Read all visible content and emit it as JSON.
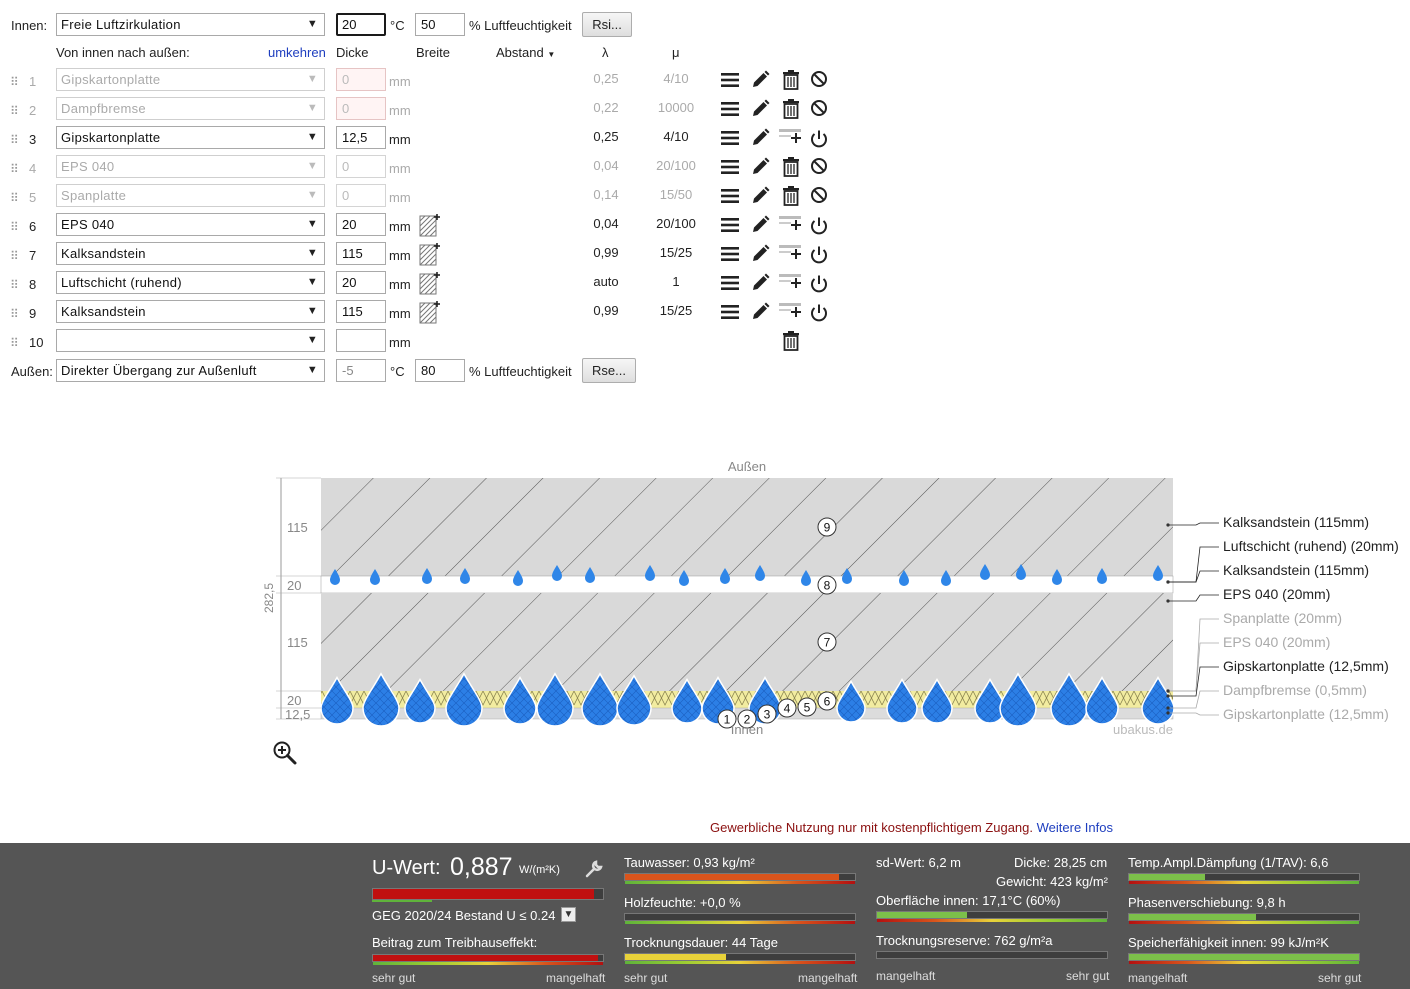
{
  "inside": {
    "label": "Innen:",
    "climate": "Freie Luftzirkulation",
    "temp": "20",
    "temp_unit": "°C",
    "humidity": "50",
    "humidity_unit": "% Luftfeuchtigkeit",
    "resistance_btn": "Rsi..."
  },
  "headers": {
    "direction": "Von innen nach außen:",
    "reverse": "umkehren",
    "thickness": "Dicke",
    "width": "Breite",
    "spacing": "Abstand",
    "lambda": "λ",
    "mu": "μ"
  },
  "layers": [
    {
      "n": "1",
      "material": "Gipskartonplatte",
      "thickness": "0",
      "unit": "mm",
      "lambda": "0,25",
      "mu": "4/10",
      "active": false,
      "thk_error": true
    },
    {
      "n": "2",
      "material": "Dampfbremse",
      "thickness": "0",
      "unit": "mm",
      "lambda": "0,22",
      "mu": "10000",
      "active": false,
      "thk_error": true
    },
    {
      "n": "3",
      "material": "Gipskartonplatte",
      "thickness": "12,5",
      "unit": "mm",
      "lambda": "0,25",
      "mu": "4/10",
      "active": true,
      "hatch": false
    },
    {
      "n": "4",
      "material": "EPS 040",
      "thickness": "0",
      "unit": "mm",
      "lambda": "0,04",
      "mu": "20/100",
      "active": false
    },
    {
      "n": "5",
      "material": "Spanplatte",
      "thickness": "0",
      "unit": "mm",
      "lambda": "0,14",
      "mu": "15/50",
      "active": false
    },
    {
      "n": "6",
      "material": "EPS 040",
      "thickness": "20",
      "unit": "mm",
      "lambda": "0,04",
      "mu": "20/100",
      "active": true,
      "hatch": true
    },
    {
      "n": "7",
      "material": "Kalksandstein",
      "thickness": "115",
      "unit": "mm",
      "lambda": "0,99",
      "mu": "15/25",
      "active": true,
      "hatch": true
    },
    {
      "n": "8",
      "material": "Luftschicht (ruhend)",
      "thickness": "20",
      "unit": "mm",
      "lambda": "auto",
      "mu": "1",
      "active": true,
      "hatch": true
    },
    {
      "n": "9",
      "material": "Kalksandstein",
      "thickness": "115",
      "unit": "mm",
      "lambda": "0,99",
      "mu": "15/25",
      "active": true,
      "hatch": true
    },
    {
      "n": "10",
      "material": "",
      "thickness": "",
      "unit": "mm",
      "lambda": "",
      "mu": "",
      "active": true,
      "empty": true
    }
  ],
  "outside": {
    "label": "Außen:",
    "climate": "Direkter Übergang zur Außenluft",
    "temp": "-5",
    "temp_unit": "°C",
    "humidity": "80",
    "humidity_unit": "% Luftfeuchtigkeit",
    "resistance_btn": "Rse..."
  },
  "diagram": {
    "top_label": "Außen",
    "bottom_label": "Innen",
    "watermark": "ubakus.de",
    "total": "282,5",
    "dims": [
      "115",
      "20",
      "115",
      "20",
      "12,5"
    ],
    "layer_labels": [
      {
        "text": "Kalksandstein (115mm)",
        "active": true
      },
      {
        "text": "Luftschicht (ruhend) (20mm)",
        "active": true
      },
      {
        "text": "Kalksandstein (115mm)",
        "active": true
      },
      {
        "text": "EPS 040 (20mm)",
        "active": true
      },
      {
        "text": "Spanplatte (20mm)",
        "active": false
      },
      {
        "text": "EPS 040 (20mm)",
        "active": false
      },
      {
        "text": "Gipskartonplatte (12,5mm)",
        "active": true
      },
      {
        "text": "Dampfbremse (0,5mm)",
        "active": false
      },
      {
        "text": "Gipskartonplatte (12,5mm)",
        "active": false
      }
    ],
    "markers": [
      "1",
      "2",
      "3",
      "4",
      "5",
      "6",
      "7",
      "8",
      "9"
    ]
  },
  "notice": {
    "text": "Gewerbliche Nutzung nur mit kostenpflichtigem Zugang.",
    "link": "Weitere Infos"
  },
  "results": {
    "u_label": "U-Wert:",
    "u_value": "0,887",
    "u_unit": "W/(m²K)",
    "u_fill": 0.96,
    "geg": "GEG 2020/24 Bestand U ≤ 0.24",
    "greenhouse": "Beitrag zum Treibhauseffekt:",
    "greenhouse_fill": 0.98,
    "scale_good": "sehr gut",
    "scale_bad": "mangelhaft",
    "tauwasser": "Tauwasser: 0,93 kg/m²",
    "tauwasser_fill": 0.93,
    "holzfeuchte": "Holzfeuchte: +0,0 %",
    "holzfeuchte_fill": 0.0,
    "trocknung": "Trocknungsdauer: 44 Tage",
    "trocknung_fill": 0.44,
    "sd": "sd-Wert: 6,2 m",
    "dicke": "Dicke: 28,25 cm",
    "gewicht": "Gewicht: 423 kg/m²",
    "oberflaeche": "Oberfläche innen: 17,1°C (60%)",
    "oberflaeche_fill": 0.39,
    "reserve": "Trocknungsreserve: 762 g/m²a",
    "reserve_fill": 0.0,
    "tav": "Temp.Ampl.Dämpfung (1/TAV): 6,6",
    "tav_fill": 0.33,
    "phase": "Phasenverschiebung: 9,8 h",
    "phase_fill": 0.55,
    "speicher": "Speicherfähigkeit innen: 99 kJ/m²K",
    "speicher_fill": 1.0,
    "scale_bad2": "mangelhaft",
    "scale_good2": "sehr gut"
  }
}
